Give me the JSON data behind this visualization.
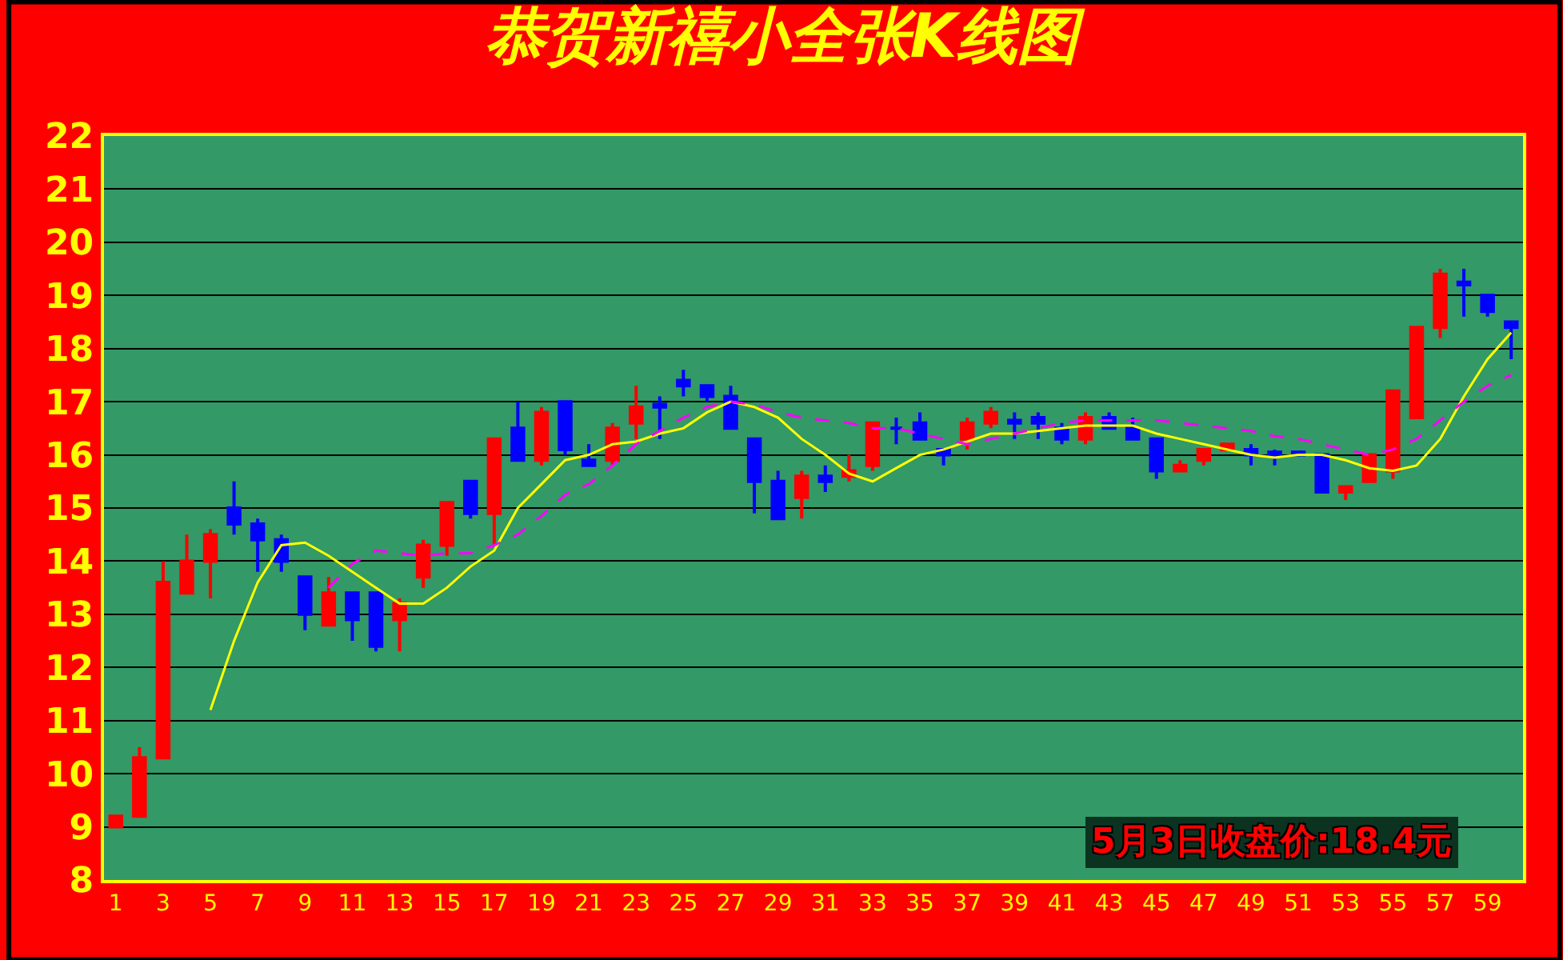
{
  "chart_data": {
    "type": "candlestick",
    "title": "恭贺新禧小全张K线图",
    "x": [
      1,
      2,
      3,
      4,
      5,
      6,
      7,
      8,
      9,
      10,
      11,
      12,
      13,
      14,
      15,
      16,
      17,
      18,
      19,
      20,
      21,
      22,
      23,
      24,
      25,
      26,
      27,
      28,
      29,
      30,
      31,
      32,
      33,
      34,
      35,
      36,
      37,
      38,
      39,
      40,
      41,
      42,
      43,
      44,
      45,
      46,
      47,
      48,
      49,
      50,
      51,
      52,
      53,
      54,
      55,
      56,
      57,
      58,
      59,
      60
    ],
    "ohlc": [
      [
        9.0,
        9.2,
        9.0,
        9.2
      ],
      [
        9.2,
        10.5,
        9.2,
        10.3
      ],
      [
        10.3,
        14.0,
        10.3,
        13.6
      ],
      [
        13.4,
        14.5,
        13.4,
        14.0
      ],
      [
        14.0,
        14.6,
        13.3,
        14.5
      ],
      [
        15.0,
        15.5,
        14.5,
        14.7
      ],
      [
        14.7,
        14.8,
        13.8,
        14.4
      ],
      [
        14.4,
        14.5,
        13.8,
        14.0
      ],
      [
        13.7,
        13.7,
        12.7,
        13.0
      ],
      [
        12.8,
        13.7,
        12.8,
        13.4
      ],
      [
        13.4,
        13.4,
        12.5,
        12.9
      ],
      [
        13.4,
        13.4,
        12.3,
        12.4
      ],
      [
        12.9,
        13.3,
        12.3,
        13.2
      ],
      [
        13.7,
        14.4,
        13.5,
        14.3
      ],
      [
        14.3,
        15.1,
        14.1,
        15.1
      ],
      [
        15.5,
        15.5,
        14.8,
        14.9
      ],
      [
        14.9,
        16.3,
        14.3,
        16.3
      ],
      [
        16.5,
        17.0,
        15.9,
        15.9
      ],
      [
        15.9,
        16.9,
        15.8,
        16.8
      ],
      [
        17.0,
        17.0,
        16.0,
        16.1
      ],
      [
        15.9,
        16.2,
        15.8,
        15.8
      ],
      [
        15.9,
        16.6,
        15.8,
        16.5
      ],
      [
        16.6,
        17.3,
        16.3,
        16.9
      ],
      [
        16.95,
        17.1,
        16.3,
        16.9
      ],
      [
        17.4,
        17.6,
        17.1,
        17.3
      ],
      [
        17.3,
        17.3,
        17.0,
        17.1
      ],
      [
        17.1,
        17.3,
        16.5,
        16.5
      ],
      [
        16.3,
        16.3,
        14.9,
        15.5
      ],
      [
        15.5,
        15.7,
        14.8,
        14.8
      ],
      [
        15.2,
        15.7,
        14.8,
        15.6
      ],
      [
        15.6,
        15.8,
        15.3,
        15.5
      ],
      [
        15.6,
        16.0,
        15.5,
        15.7
      ],
      [
        15.8,
        16.6,
        15.7,
        16.6
      ],
      [
        16.5,
        16.7,
        16.2,
        16.5
      ],
      [
        16.6,
        16.8,
        16.3,
        16.3
      ],
      [
        16.1,
        16.1,
        15.8,
        16.0
      ],
      [
        16.3,
        16.7,
        16.1,
        16.6
      ],
      [
        16.6,
        16.9,
        16.5,
        16.8
      ],
      [
        16.65,
        16.8,
        16.3,
        16.6
      ],
      [
        16.7,
        16.8,
        16.3,
        16.6
      ],
      [
        16.5,
        16.6,
        16.2,
        16.3
      ],
      [
        16.3,
        16.8,
        16.2,
        16.7
      ],
      [
        16.7,
        16.8,
        16.5,
        16.5
      ],
      [
        16.5,
        16.7,
        16.3,
        16.3
      ],
      [
        16.3,
        16.3,
        15.55,
        15.7
      ],
      [
        15.7,
        15.9,
        15.7,
        15.8
      ],
      [
        15.9,
        16.1,
        15.8,
        16.1
      ],
      [
        16.1,
        16.2,
        16.1,
        16.2
      ],
      [
        16.1,
        16.2,
        15.8,
        16.0
      ],
      [
        16.05,
        16.1,
        15.8,
        16.0
      ],
      [
        16.05,
        16.05,
        16.0,
        16.0
      ],
      [
        16.0,
        16.0,
        15.3,
        15.3
      ],
      [
        15.3,
        15.4,
        15.15,
        15.4
      ],
      [
        15.5,
        16.0,
        15.5,
        16.0
      ],
      [
        15.7,
        17.2,
        15.55,
        17.2
      ],
      [
        16.7,
        18.4,
        16.7,
        18.4
      ],
      [
        18.4,
        19.5,
        18.2,
        19.4
      ],
      [
        19.25,
        19.5,
        18.6,
        19.2
      ],
      [
        19.0,
        19.0,
        18.6,
        18.7
      ],
      [
        18.5,
        18.5,
        17.8,
        18.4
      ]
    ],
    "colors": [
      "#ff0000",
      "#ff0000",
      "#ff0000",
      "#ff0000",
      "#ff0000",
      "#0000ff",
      "#0000ff",
      "#0000ff",
      "#0000ff",
      "#ff0000",
      "#0000ff",
      "#0000ff",
      "#ff0000",
      "#ff0000",
      "#ff0000",
      "#0000ff",
      "#ff0000",
      "#0000ff",
      "#ff0000",
      "#0000ff",
      "#0000ff",
      "#ff0000",
      "#ff0000",
      "#0000ff",
      "#0000ff",
      "#0000ff",
      "#0000ff",
      "#0000ff",
      "#0000ff",
      "#ff0000",
      "#0000ff",
      "#ff0000",
      "#ff0000",
      "#0000ff",
      "#0000ff",
      "#0000ff",
      "#ff0000",
      "#ff0000",
      "#0000ff",
      "#0000ff",
      "#0000ff",
      "#ff0000",
      "#0000ff",
      "#0000ff",
      "#0000ff",
      "#ff0000",
      "#ff0000",
      "#ff0000",
      "#0000ff",
      "#0000ff",
      "#0000ff",
      "#0000ff",
      "#ff0000",
      "#ff0000",
      "#ff0000",
      "#ff0000",
      "#ff0000",
      "#0000ff",
      "#0000ff",
      "#0000ff"
    ],
    "series": [
      {
        "type": "line",
        "color": "#ffff00",
        "x": [
          5,
          6,
          7,
          8,
          9,
          10,
          11,
          12,
          13,
          14,
          15,
          16,
          17,
          18,
          19,
          20,
          21,
          22,
          23,
          24,
          25,
          26,
          27,
          28,
          29,
          30,
          31,
          32,
          33,
          34,
          35,
          36,
          37,
          38,
          39,
          40,
          41,
          42,
          43,
          44,
          45,
          46,
          47,
          48,
          49,
          50,
          51,
          52,
          53,
          54,
          55,
          56,
          57,
          58,
          59,
          60
        ],
        "values": [
          11.2,
          12.5,
          13.6,
          14.3,
          14.35,
          14.1,
          13.8,
          13.5,
          13.2,
          13.2,
          13.5,
          13.9,
          14.2,
          15.0,
          15.45,
          15.9,
          16.0,
          16.2,
          16.25,
          16.4,
          16.5,
          16.8,
          17.0,
          16.9,
          16.7,
          16.3,
          16.0,
          15.65,
          15.5,
          15.75,
          16.0,
          16.1,
          16.25,
          16.4,
          16.4,
          16.45,
          16.5,
          16.55,
          16.55,
          16.55,
          16.4,
          16.3,
          16.2,
          16.1,
          16.0,
          15.95,
          16.0,
          16.0,
          15.9,
          15.75,
          15.7,
          15.8,
          16.3,
          17.1,
          17.8,
          18.3
        ]
      },
      {
        "type": "line",
        "color": "#ff00ff",
        "line_style": "dashed",
        "x": [
          10,
          11,
          12,
          13,
          14,
          15,
          16,
          17,
          18,
          19,
          20,
          21,
          22,
          23,
          24,
          25,
          26,
          27,
          28,
          29,
          30,
          31,
          32,
          33,
          34,
          35,
          36,
          37,
          38,
          39,
          40,
          41,
          42,
          43,
          44,
          45,
          46,
          47,
          48,
          49,
          50,
          51,
          52,
          53,
          54,
          55,
          56,
          57,
          58,
          59,
          60
        ],
        "values": [
          13.5,
          13.95,
          14.2,
          14.15,
          14.1,
          14.15,
          14.15,
          14.3,
          14.5,
          14.85,
          15.25,
          15.45,
          15.8,
          16.2,
          16.45,
          16.7,
          16.9,
          17.0,
          16.95,
          16.8,
          16.7,
          16.65,
          16.6,
          16.5,
          16.5,
          16.4,
          16.3,
          16.2,
          16.3,
          16.4,
          16.5,
          16.6,
          16.65,
          16.65,
          16.65,
          16.65,
          16.6,
          16.55,
          16.5,
          16.45,
          16.35,
          16.3,
          16.2,
          16.1,
          16.0,
          16.1,
          16.3,
          16.65,
          17.0,
          17.3,
          17.5
        ]
      }
    ],
    "xlim": [
      0.5,
      60.5
    ],
    "xticks": [
      1,
      3,
      5,
      7,
      9,
      11,
      13,
      15,
      17,
      19,
      21,
      23,
      25,
      27,
      29,
      31,
      33,
      35,
      37,
      39,
      41,
      43,
      45,
      47,
      49,
      51,
      53,
      55,
      57,
      59
    ],
    "ylim": [
      8,
      22
    ],
    "yticks": [
      8,
      9,
      10,
      11,
      12,
      13,
      14,
      15,
      16,
      17,
      18,
      19,
      20,
      21,
      22
    ],
    "grid": "y",
    "annotations": [
      "5月3日收盘价:18.4元"
    ]
  }
}
